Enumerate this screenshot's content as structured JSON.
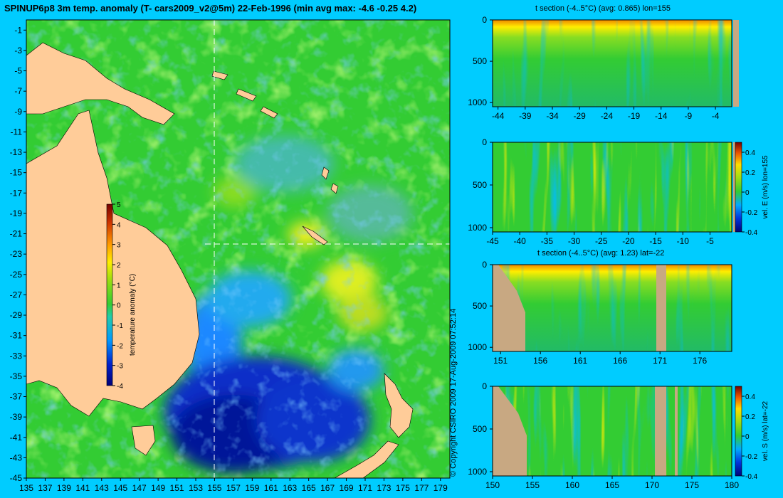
{
  "page": {
    "title": "SPINUP6p8 3m temp. anomaly (T- cars2009_v2@5m) 22-Feb-1996 (min avg max: -4.6 -0.25 4.2)",
    "copyright": "© Copyright CSIRO 2009   17-Aug-2009 07:52:14"
  },
  "colors": {
    "background": "#00ccff",
    "land": "#ffcc99",
    "section_land": "#c8a882",
    "field_neutral": "#33cc33",
    "warm": "#ffee00",
    "hot": "#dd2200",
    "cold": "#0000aa",
    "guide_line": "#ffffff"
  },
  "chart_data": [
    {
      "id": "map",
      "type": "heatmap",
      "variable": "3m temp. anomaly",
      "xlim": [
        135,
        180
      ],
      "ylim": [
        -45,
        0
      ],
      "xticks": [
        "135",
        "137",
        "139",
        "141",
        "143",
        "145",
        "147",
        "149",
        "151",
        "153",
        "155",
        "157",
        "159",
        "161",
        "163",
        "165",
        "167",
        "169",
        "171",
        "173",
        "175",
        "177",
        "179"
      ],
      "yticks": [
        "-1",
        "-3",
        "-5",
        "-7",
        "-9",
        "-11",
        "-13",
        "-15",
        "-17",
        "-19",
        "-21",
        "-23",
        "-25",
        "-27",
        "-29",
        "-31",
        "-33",
        "-35",
        "-37",
        "-39",
        "-41",
        "-43",
        "-45"
      ],
      "section_lon": 155,
      "section_lat": -22,
      "colorbar": {
        "label": "temperature anomaly (°C)",
        "range": [
          -4,
          5
        ],
        "ticks": [
          "5",
          "4",
          "3",
          "2",
          "1",
          "0",
          "-1",
          "-2",
          "-3",
          "-4"
        ]
      },
      "stats": {
        "min": -4.6,
        "avg": -0.25,
        "max": 4.2
      }
    },
    {
      "id": "tsec-lon",
      "type": "heatmap",
      "title": "t section (-4..5°C) (avg: 0.865) lon=155",
      "xlim": [
        -45,
        -1
      ],
      "ylim": [
        1050,
        0
      ],
      "xticks": [
        "-44",
        "-39",
        "-34",
        "-29",
        "-24",
        "-19",
        "-14",
        "-9",
        "-4"
      ],
      "yticks": [
        "0",
        "500",
        "1000"
      ],
      "avg": 0.865
    },
    {
      "id": "vsec-lon",
      "type": "heatmap",
      "xlim": [
        -45,
        -1
      ],
      "ylim": [
        1050,
        0
      ],
      "xticks": [
        "-45",
        "-40",
        "-35",
        "-30",
        "-25",
        "-20",
        "-15",
        "-10",
        "-5"
      ],
      "yticks": [
        "0",
        "500",
        "1000"
      ],
      "colorbar": {
        "label": "vel. E (m/s) lon=155",
        "range": [
          -0.4,
          0.5
        ],
        "ticks": [
          "0.4",
          "0.2",
          "0",
          "-0.2",
          "-0.4"
        ]
      }
    },
    {
      "id": "tsec-lat",
      "type": "heatmap",
      "title": "t section (-4..5°C) (avg: 1.23) lat=-22",
      "xlim": [
        150,
        180
      ],
      "ylim": [
        1050,
        0
      ],
      "xticks": [
        "151",
        "156",
        "161",
        "166",
        "171",
        "176"
      ],
      "yticks": [
        "0",
        "500",
        "1000"
      ],
      "avg": 1.23
    },
    {
      "id": "vsec-lat",
      "type": "heatmap",
      "xlim": [
        150,
        180
      ],
      "ylim": [
        1050,
        0
      ],
      "xticks": [
        "150",
        "155",
        "160",
        "165",
        "170",
        "175",
        "180"
      ],
      "yticks": [
        "0",
        "500",
        "1000"
      ],
      "colorbar": {
        "label": "vel. S (m/s) lat=-22",
        "range": [
          -0.4,
          0.5
        ],
        "ticks": [
          "0.4",
          "0.2",
          "0",
          "-0.2",
          "-0.4"
        ]
      }
    }
  ]
}
